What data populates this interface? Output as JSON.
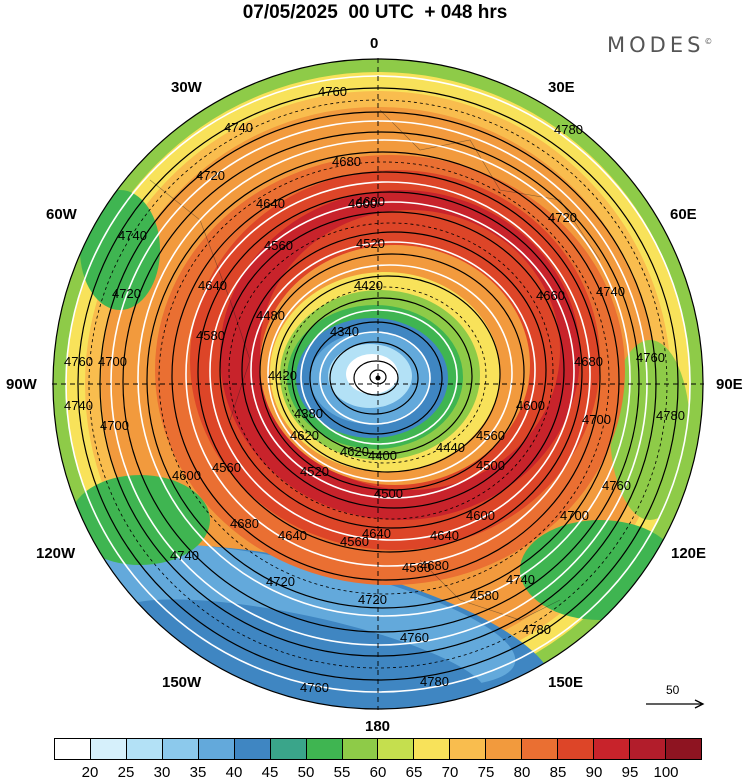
{
  "title": "07/05/2025  00 UTC  + 048 hrs",
  "brand": "MODES",
  "brand_mark": "©",
  "longitude_labels": {
    "n": "0",
    "nne": "30E",
    "ene": "60E",
    "e": "90E",
    "ese": "120E",
    "sse": "150E",
    "s": "180",
    "ssw": "150W",
    "wsw": "120W",
    "w": "90W",
    "wnw": "60W",
    "nnw": "30W"
  },
  "contour_labels": [
    "4760",
    "4740",
    "4720",
    "4740",
    "4720",
    "4760",
    "4740",
    "4700",
    "4700",
    "4680",
    "4640",
    "4600",
    "4560",
    "4520",
    "4640",
    "4580",
    "4480",
    "4420",
    "4420",
    "4340",
    "4380",
    "4560",
    "4520",
    "4600",
    "4640",
    "4680",
    "4720",
    "4720",
    "4780",
    "4760",
    "4740",
    "4720",
    "4660",
    "4680",
    "4600",
    "4560",
    "4500",
    "4440",
    "4400",
    "4500",
    "4600",
    "4640",
    "4700",
    "4740",
    "4760",
    "4780",
    "4760",
    "4780",
    "4620",
    "4580",
    "4600",
    "4680",
    "4560",
    "4560",
    "4700",
    "4620",
    "4640",
    "4740",
    "4760",
    "4780"
  ],
  "reference_vector": {
    "label": "50"
  },
  "colorbar": {
    "colors": [
      "#ffffff",
      "#d6f0fb",
      "#b3e1f6",
      "#8cc9ec",
      "#63a9db",
      "#3f86c2",
      "#3aa58a",
      "#3fb551",
      "#8ecb48",
      "#c5df4e",
      "#f8e25a",
      "#f9bd4e",
      "#f29a3d",
      "#ea6f32",
      "#dd4528",
      "#c8232b",
      "#b21d2b",
      "#8e1421"
    ],
    "ticks": [
      "20",
      "25",
      "30",
      "35",
      "40",
      "45",
      "50",
      "55",
      "60",
      "65",
      "70",
      "75",
      "80",
      "85",
      "90",
      "95",
      "100"
    ]
  },
  "field_colors": {
    "ring_outer": "#ea6f32",
    "jet_core": "#c8232b",
    "low_center": "#ffffff",
    "blue_band": "#3f86c2"
  }
}
